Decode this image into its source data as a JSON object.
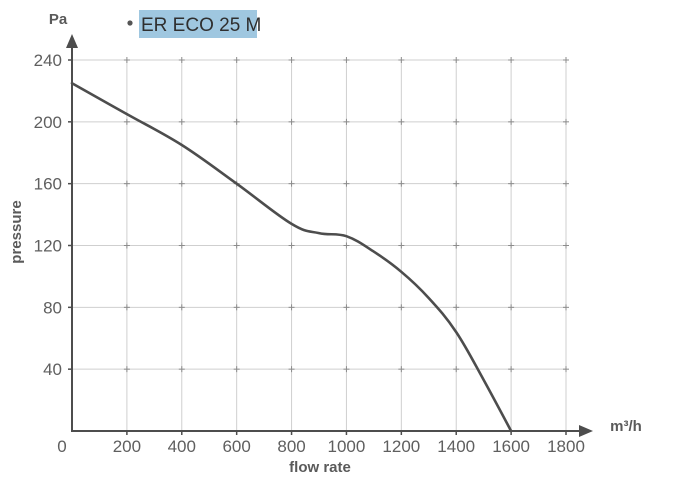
{
  "chart_data": {
    "type": "line",
    "y_unit": "Pa",
    "x_unit": "m³/h",
    "xlabel": "flow rate",
    "ylabel": "pressure",
    "xlim": [
      0,
      1800
    ],
    "ylim": [
      0,
      240
    ],
    "x_ticks": [
      0,
      200,
      400,
      600,
      800,
      1000,
      1200,
      1400,
      1600,
      1800
    ],
    "y_ticks": [
      40,
      80,
      120,
      160,
      200,
      240
    ],
    "grid": true,
    "legend_position": "top-left",
    "series": [
      {
        "name": "ER ECO 25 M",
        "color": "#4d4d4d",
        "highlight_color": "#9fc7e0",
        "x": [
          0,
          200,
          400,
          600,
          800,
          900,
          1000,
          1100,
          1200,
          1300,
          1400,
          1500,
          1600
        ],
        "y": [
          225,
          205,
          185,
          160,
          134,
          128,
          126,
          116,
          103,
          86,
          64,
          33,
          0
        ]
      }
    ]
  }
}
